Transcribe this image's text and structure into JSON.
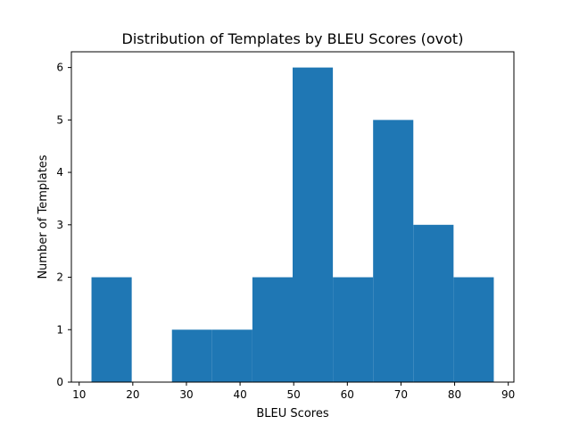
{
  "chart_data": {
    "type": "bar",
    "title": "Distribution of Templates by BLEU Scores (ovot)",
    "xlabel": "BLEU Scores",
    "ylabel": "Number of Templates",
    "bins": [
      {
        "start": 12.3,
        "end": 19.8,
        "count": 2
      },
      {
        "start": 19.8,
        "end": 27.3,
        "count": 0
      },
      {
        "start": 27.3,
        "end": 34.8,
        "count": 1
      },
      {
        "start": 34.8,
        "end": 42.3,
        "count": 1
      },
      {
        "start": 42.3,
        "end": 49.8,
        "count": 2
      },
      {
        "start": 49.8,
        "end": 57.3,
        "count": 6
      },
      {
        "start": 57.3,
        "end": 64.8,
        "count": 2
      },
      {
        "start": 64.8,
        "end": 72.3,
        "count": 5
      },
      {
        "start": 72.3,
        "end": 79.8,
        "count": 3
      },
      {
        "start": 79.8,
        "end": 87.3,
        "count": 2
      }
    ],
    "xlim": [
      8.55,
      91.05
    ],
    "ylim": [
      0,
      6.3
    ],
    "xticks": [
      10,
      20,
      30,
      40,
      50,
      60,
      70,
      80,
      90
    ],
    "yticks": [
      0,
      1,
      2,
      3,
      4,
      5,
      6
    ],
    "bar_color": "#1f77b4",
    "grid": false,
    "legend": "none"
  }
}
